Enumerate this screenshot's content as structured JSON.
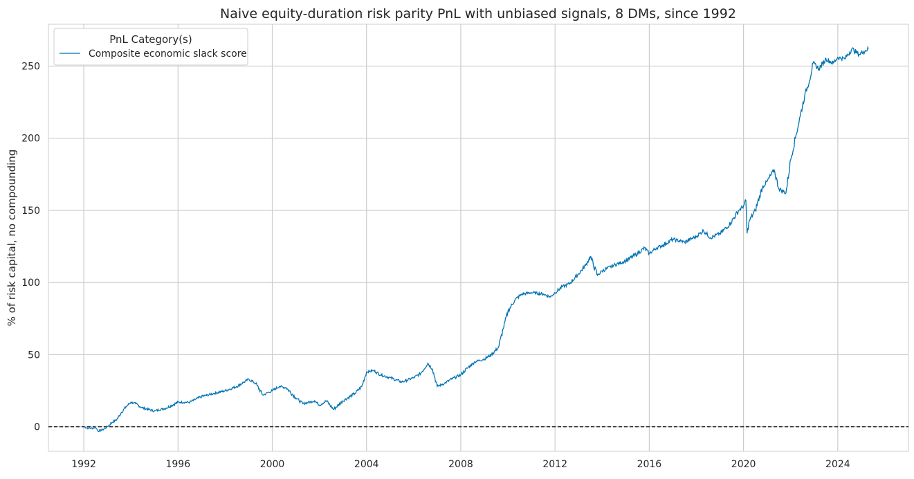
{
  "chart_data": {
    "type": "line",
    "title": "Naive equity-duration risk parity PnL with unbiased signals, 8 DMs, since 1992",
    "xlabel": "",
    "ylabel": "% of risk capital, no compounding",
    "xlim": [
      1990.5,
      2027.0
    ],
    "ylim": [
      -17,
      279
    ],
    "x_ticks": [
      1992,
      1996,
      2000,
      2004,
      2008,
      2012,
      2016,
      2020,
      2024
    ],
    "x_tick_labels": [
      "1992",
      "1996",
      "2000",
      "2004",
      "2008",
      "2012",
      "2016",
      "2020",
      "2024"
    ],
    "y_ticks": [
      0,
      50,
      100,
      150,
      200,
      250
    ],
    "y_tick_labels": [
      "0",
      "50",
      "100",
      "150",
      "200",
      "250"
    ],
    "grid": true,
    "zero_line": {
      "y": 0,
      "style": "dashed",
      "color": "#000000"
    },
    "legend": {
      "title": "PnL Category(s)",
      "position": "top-left",
      "entries": [
        "Composite economic slack score"
      ]
    },
    "series": [
      {
        "name": "Composite economic slack score",
        "color": "#0072b2",
        "points": [
          [
            1992.0,
            0
          ],
          [
            1992.2,
            -1
          ],
          [
            1992.4,
            -1
          ],
          [
            1992.5,
            0
          ],
          [
            1992.6,
            -3
          ],
          [
            1992.8,
            -2
          ],
          [
            1993.0,
            0
          ],
          [
            1993.2,
            3
          ],
          [
            1993.4,
            5
          ],
          [
            1993.6,
            10
          ],
          [
            1993.8,
            14
          ],
          [
            1994.0,
            17
          ],
          [
            1994.2,
            16
          ],
          [
            1994.5,
            13
          ],
          [
            1995.0,
            11
          ],
          [
            1995.5,
            13
          ],
          [
            1996.0,
            17
          ],
          [
            1996.5,
            17
          ],
          [
            1997.0,
            21
          ],
          [
            1997.5,
            23
          ],
          [
            1998.0,
            25
          ],
          [
            1998.5,
            28
          ],
          [
            1998.8,
            31
          ],
          [
            1999.0,
            33
          ],
          [
            1999.3,
            30
          ],
          [
            1999.6,
            22
          ],
          [
            2000.0,
            25
          ],
          [
            2000.3,
            28
          ],
          [
            2000.6,
            27
          ],
          [
            2001.0,
            20
          ],
          [
            2001.3,
            16
          ],
          [
            2001.8,
            18
          ],
          [
            2002.0,
            15
          ],
          [
            2002.3,
            18
          ],
          [
            2002.6,
            12
          ],
          [
            2003.0,
            18
          ],
          [
            2003.5,
            23
          ],
          [
            2003.8,
            28
          ],
          [
            2004.0,
            38
          ],
          [
            2004.3,
            39
          ],
          [
            2004.6,
            36
          ],
          [
            2005.0,
            34
          ],
          [
            2005.5,
            31
          ],
          [
            2006.0,
            34
          ],
          [
            2006.3,
            37
          ],
          [
            2006.6,
            44
          ],
          [
            2006.8,
            40
          ],
          [
            2007.0,
            28
          ],
          [
            2007.3,
            30
          ],
          [
            2007.6,
            33
          ],
          [
            2008.0,
            36
          ],
          [
            2008.3,
            41
          ],
          [
            2008.6,
            45
          ],
          [
            2009.0,
            47
          ],
          [
            2009.3,
            50
          ],
          [
            2009.6,
            55
          ],
          [
            2009.8,
            68
          ],
          [
            2010.0,
            80
          ],
          [
            2010.3,
            88
          ],
          [
            2010.6,
            92
          ],
          [
            2011.0,
            93
          ],
          [
            2011.5,
            92
          ],
          [
            2011.8,
            90
          ],
          [
            2012.0,
            93
          ],
          [
            2012.3,
            97
          ],
          [
            2012.6,
            99
          ],
          [
            2013.0,
            106
          ],
          [
            2013.3,
            112
          ],
          [
            2013.5,
            118
          ],
          [
            2013.8,
            105
          ],
          [
            2014.0,
            108
          ],
          [
            2014.5,
            112
          ],
          [
            2015.0,
            115
          ],
          [
            2015.5,
            120
          ],
          [
            2015.8,
            124
          ],
          [
            2016.0,
            120
          ],
          [
            2016.3,
            124
          ],
          [
            2016.6,
            126
          ],
          [
            2017.0,
            130
          ],
          [
            2017.5,
            128
          ],
          [
            2018.0,
            132
          ],
          [
            2018.3,
            136
          ],
          [
            2018.6,
            131
          ],
          [
            2019.0,
            134
          ],
          [
            2019.4,
            140
          ],
          [
            2019.8,
            150
          ],
          [
            2020.0,
            153
          ],
          [
            2020.1,
            157
          ],
          [
            2020.15,
            134
          ],
          [
            2020.25,
            143
          ],
          [
            2020.5,
            150
          ],
          [
            2020.8,
            166
          ],
          [
            2021.0,
            170
          ],
          [
            2021.3,
            178
          ],
          [
            2021.5,
            165
          ],
          [
            2021.8,
            162
          ],
          [
            2022.0,
            185
          ],
          [
            2022.2,
            200
          ],
          [
            2022.4,
            215
          ],
          [
            2022.6,
            230
          ],
          [
            2022.8,
            240
          ],
          [
            2022.95,
            252
          ],
          [
            2023.2,
            248
          ],
          [
            2023.5,
            255
          ],
          [
            2023.8,
            252
          ],
          [
            2024.0,
            256
          ],
          [
            2024.3,
            255
          ],
          [
            2024.6,
            262
          ],
          [
            2024.9,
            258
          ],
          [
            2025.1,
            260
          ],
          [
            2025.3,
            262
          ]
        ]
      }
    ]
  }
}
